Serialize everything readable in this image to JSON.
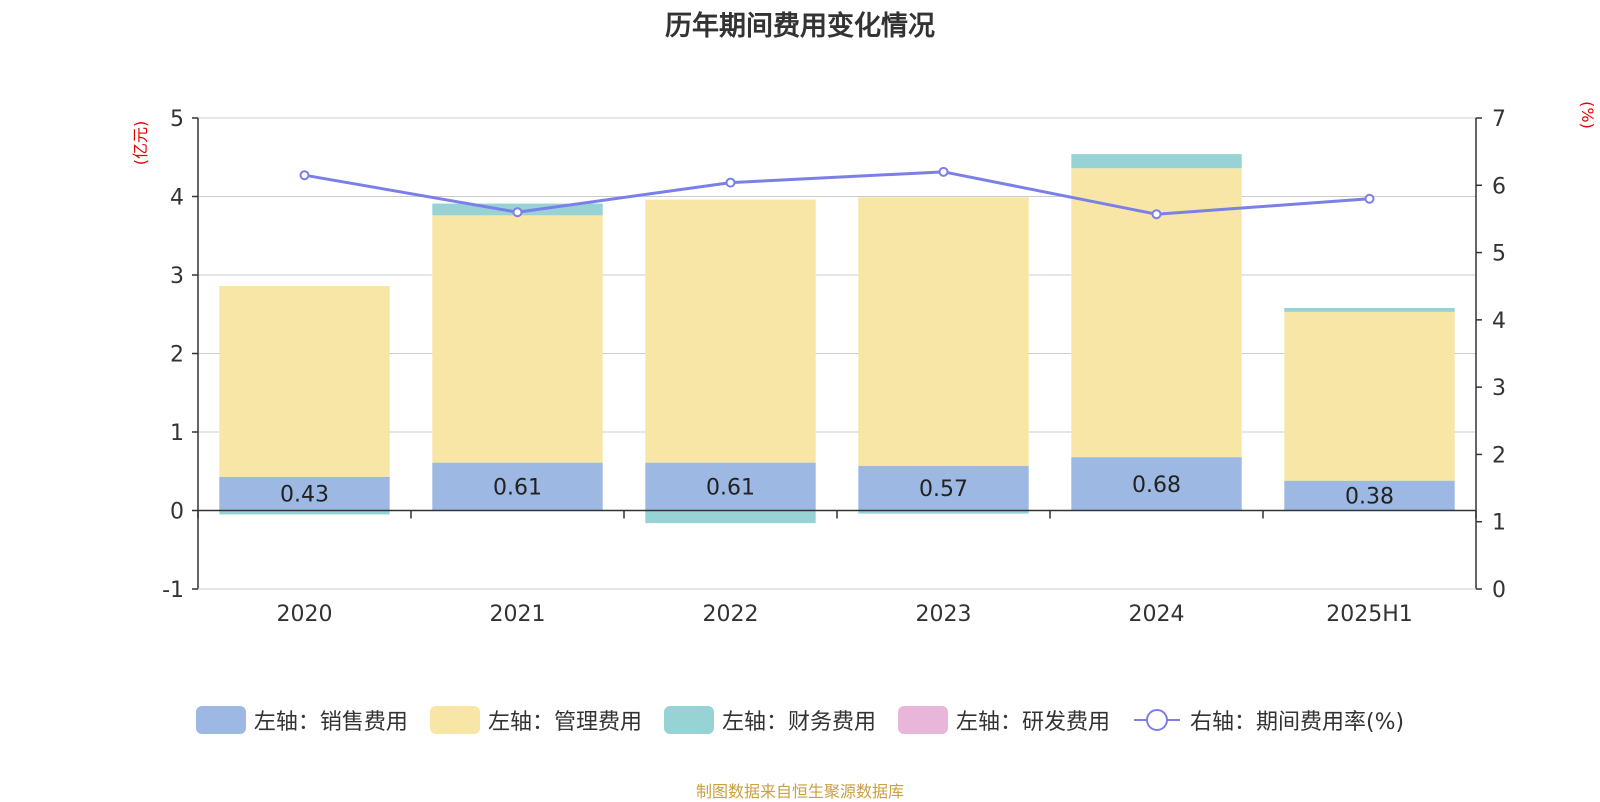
{
  "chart_data": {
    "type": "bar",
    "title": "历年期间费用变化情况",
    "categories": [
      "2020",
      "2021",
      "2022",
      "2023",
      "2024",
      "2025H1"
    ],
    "left_axis": {
      "unit": "(亿元)",
      "ylim": [
        -1,
        5
      ],
      "ticks": [
        "-1",
        "0",
        "1",
        "2",
        "3",
        "4",
        "5"
      ]
    },
    "right_axis": {
      "unit": "(%)",
      "ylim": [
        0,
        7
      ],
      "ticks": [
        "0",
        "1",
        "2",
        "3",
        "4",
        "5",
        "6",
        "7"
      ]
    },
    "series": [
      {
        "name": "左轴：销售费用",
        "type": "bar",
        "axis": "left",
        "color": "#9db8e2",
        "values": [
          0.43,
          0.61,
          0.61,
          0.57,
          0.68,
          0.38
        ],
        "labels": [
          "0.43",
          "0.61",
          "0.61",
          "0.57",
          "0.68",
          "0.38"
        ]
      },
      {
        "name": "左轴：管理费用",
        "type": "bar",
        "axis": "left",
        "color": "#f7e6a6",
        "values": [
          2.43,
          3.15,
          3.35,
          3.42,
          3.68,
          2.15
        ]
      },
      {
        "name": "左轴：财务费用",
        "type": "bar",
        "axis": "left",
        "color": "#97d3d4",
        "values": [
          -0.05,
          0.15,
          -0.16,
          -0.04,
          0.18,
          0.05
        ]
      },
      {
        "name": "左轴：研发费用",
        "type": "bar",
        "axis": "left",
        "color": "#e8b6d8",
        "values": [
          0,
          0,
          0,
          0,
          0,
          0
        ]
      },
      {
        "name": "右轴：期间费用率(%)",
        "type": "line",
        "axis": "right",
        "color": "#7b7fe8",
        "values": [
          6.15,
          5.6,
          6.04,
          6.2,
          5.57,
          5.8
        ]
      }
    ],
    "grid": true,
    "legend_position": "bottom"
  },
  "source_note": "制图数据来自恒生聚源数据库"
}
